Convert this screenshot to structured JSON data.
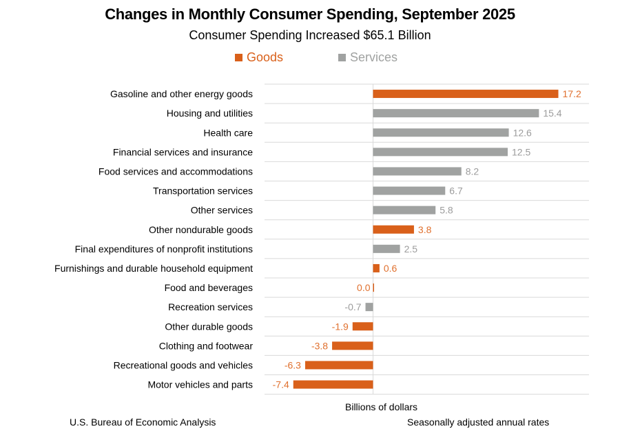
{
  "chart_data": {
    "type": "bar",
    "orientation": "horizontal",
    "title": "Changes in Monthly Consumer Spending, September 2025",
    "subtitle": "Consumer Spending Increased $65.1 Billion",
    "xlabel": "Billions of dollars",
    "xlim": [
      -8,
      20
    ],
    "grid": "horizontal row separators",
    "legend_position": "top",
    "legend": [
      {
        "name": "Goods",
        "color": "#D9601A"
      },
      {
        "name": "Services",
        "color": "#A0A2A1"
      }
    ],
    "categories": [
      "Gasoline and other energy goods",
      "Housing and utilities",
      "Health care",
      "Financial services and insurance",
      "Food services and accommodations",
      "Transportation services",
      "Other services",
      "Other nondurable goods",
      "Final expenditures of nonprofit institutions",
      "Furnishings and durable household equipment",
      "Food and beverages",
      "Recreation services",
      "Other durable goods",
      "Clothing and footwear",
      "Recreational goods and vehicles",
      "Motor vehicles and parts"
    ],
    "values": [
      17.2,
      15.4,
      12.6,
      12.5,
      8.2,
      6.7,
      5.8,
      3.8,
      2.5,
      0.6,
      0.0,
      -0.7,
      -1.9,
      -3.8,
      -6.3,
      -7.4
    ],
    "value_labels": [
      "17.2",
      "15.4",
      "12.6",
      "12.5",
      "8.2",
      "6.7",
      "5.8",
      "3.8",
      "2.5",
      "0.6",
      "0.0",
      "-0.7",
      "-1.9",
      "-3.8",
      "-6.3",
      "-7.4"
    ],
    "group": [
      "Goods",
      "Services",
      "Services",
      "Services",
      "Services",
      "Services",
      "Services",
      "Goods",
      "Services",
      "Goods",
      "Goods",
      "Services",
      "Goods",
      "Goods",
      "Goods",
      "Goods"
    ]
  },
  "footer": {
    "source": "U.S. Bureau of Economic Analysis",
    "note": "Seasonally adjusted annual rates"
  },
  "colors": {
    "goods": "#D9601A",
    "services": "#A0A2A1",
    "goods_label": "#E0702E",
    "services_label": "#9C9C9C"
  }
}
